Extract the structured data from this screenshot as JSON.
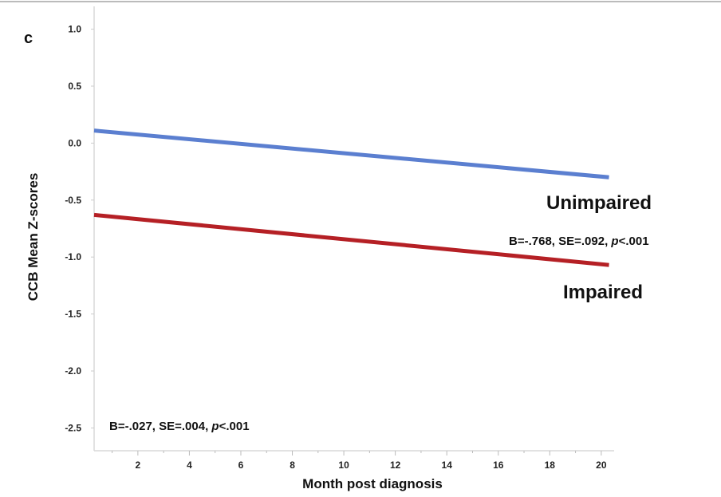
{
  "chart_data": {
    "type": "line",
    "panel_label": "c",
    "title": "",
    "xlabel": "Month post diagnosis",
    "ylabel": "CCB Mean Z-scores",
    "xlim": [
      0.3,
      20.5
    ],
    "ylim": [
      -2.7,
      1.2
    ],
    "x_ticks": [
      2,
      4,
      6,
      8,
      10,
      12,
      14,
      16,
      18,
      20
    ],
    "y_ticks": [
      1.0,
      0.5,
      0.0,
      -0.5,
      -1.0,
      -1.5,
      -2.0,
      -2.5
    ],
    "y_tick_labels": [
      "1.0",
      "0.5",
      "0.0",
      "-0.5",
      "-1.0",
      "-1.5",
      "-2.0",
      "-2.5"
    ],
    "grid": false,
    "series": [
      {
        "name": "Unimpaired",
        "color": "#5b7fd0",
        "x": [
          0.3,
          20.3
        ],
        "y": [
          0.11,
          -0.3
        ]
      },
      {
        "name": "Impaired",
        "color": "#b52025",
        "x": [
          0.3,
          20.3
        ],
        "y": [
          -0.63,
          -1.07
        ]
      }
    ],
    "annotations": {
      "group_effect": {
        "prefix": "B=-.768, SE=.092, ",
        "p_label": "p",
        "p_value": "<.001"
      },
      "time_effect": {
        "prefix": "B=-.027, SE=.004, ",
        "p_label": "p",
        "p_value": "<.001"
      }
    }
  }
}
